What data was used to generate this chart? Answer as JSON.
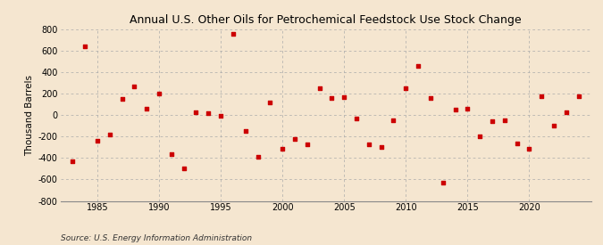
{
  "title": "Annual U.S. Other Oils for Petrochemical Feedstock Use Stock Change",
  "ylabel": "Thousand Barrels",
  "source_text": "Source: U.S. Energy Information Administration",
  "xlim": [
    1982,
    2025
  ],
  "ylim": [
    -800,
    800
  ],
  "yticks": [
    -800,
    -600,
    -400,
    -200,
    0,
    200,
    400,
    600,
    800
  ],
  "xticks": [
    1985,
    1990,
    1995,
    2000,
    2005,
    2010,
    2015,
    2020
  ],
  "background_color": "#f5e6d0",
  "grid_color": "#aaaaaa",
  "marker_color": "#cc0000",
  "years": [
    1983,
    1984,
    1985,
    1986,
    1987,
    1988,
    1989,
    1990,
    1991,
    1992,
    1993,
    1994,
    1995,
    1996,
    1997,
    1998,
    1999,
    2000,
    2001,
    2002,
    2003,
    2004,
    2005,
    2006,
    2007,
    2008,
    2009,
    2010,
    2011,
    2012,
    2013,
    2014,
    2015,
    2016,
    2017,
    2018,
    2019,
    2020,
    2021,
    2022,
    2023,
    2024
  ],
  "values": [
    -430,
    640,
    -240,
    -180,
    150,
    270,
    60,
    200,
    -360,
    -500,
    30,
    20,
    -10,
    760,
    -150,
    -390,
    120,
    -310,
    -220,
    -270,
    250,
    160,
    170,
    -30,
    -270,
    -300,
    -50,
    250,
    460,
    160,
    -630,
    50,
    60,
    -200,
    -60,
    -50,
    -260,
    -310,
    180,
    -100,
    30,
    180
  ],
  "title_fontsize": 9.0,
  "tick_fontsize": 7.0,
  "ylabel_fontsize": 7.5,
  "source_fontsize": 6.5
}
